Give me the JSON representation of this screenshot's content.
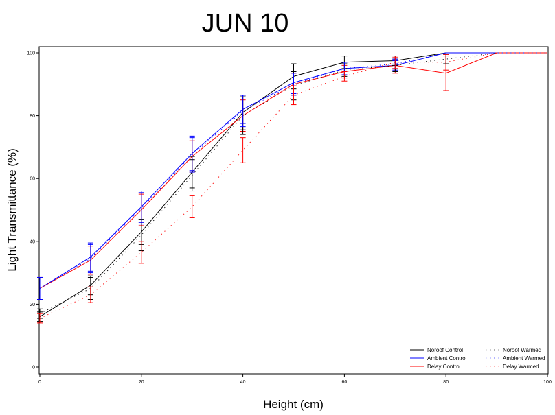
{
  "chart_data": {
    "type": "line",
    "title": "JUN 10",
    "xlabel": "Height (cm)",
    "ylabel": "Light Transmittance (%)",
    "xlim": [
      0,
      100
    ],
    "ylim": [
      0,
      100
    ],
    "xticks": [
      "0",
      "20",
      "40",
      "60",
      "80",
      "100"
    ],
    "yticks": [
      "0",
      "20",
      "40",
      "60",
      "80",
      "100"
    ],
    "grid": false,
    "legend_position": "bottom-right",
    "x": [
      0,
      10,
      20,
      30,
      40,
      50,
      60,
      70,
      80,
      90,
      100
    ],
    "series": [
      {
        "name": "Noroof Control",
        "color": "#000000",
        "style": "solid",
        "values": [
          16,
          26,
          43,
          62,
          81,
          92.5,
          97,
          97.5,
          100,
          100,
          100
        ],
        "errors": [
          1.5,
          3,
          4,
          5,
          5.5,
          4,
          2,
          1.5,
          0,
          0,
          0
        ]
      },
      {
        "name": "Ambient Control",
        "color": "#0000ff",
        "style": "solid",
        "values": [
          25,
          35,
          51,
          68,
          82,
          90.5,
          95,
          96,
          100,
          100,
          100
        ],
        "errors": [
          3.5,
          4.5,
          5,
          5.5,
          4.5,
          3.5,
          2,
          1.5,
          0,
          0,
          0
        ]
      },
      {
        "name": "Delay Control",
        "color": "#ff0000",
        "style": "solid",
        "values": [
          25,
          34,
          50,
          67,
          80,
          90,
          94,
          96,
          93.5,
          100,
          100
        ],
        "errors": [
          3.5,
          4.5,
          5,
          5,
          5,
          3.5,
          2,
          2.5,
          5.5,
          0,
          0
        ]
      },
      {
        "name": "Noroof Warmed",
        "color": "#000000",
        "style": "dotted",
        "values": [
          17,
          25,
          42,
          61,
          80,
          89.5,
          94.5,
          96,
          98,
          100,
          100
        ],
        "errors": [
          1.5,
          3.5,
          5,
          5,
          6,
          4.5,
          2,
          2,
          1.5,
          0,
          0
        ]
      },
      {
        "name": "Ambient Warmed",
        "color": "#0000ff",
        "style": "dotted",
        "values": [
          25,
          34.5,
          50.5,
          67.5,
          81.5,
          90,
          95,
          96.5,
          100,
          100,
          100
        ],
        "errors": [
          3.5,
          4.5,
          5,
          5.5,
          5,
          3.5,
          2,
          1.5,
          0,
          0,
          0
        ]
      },
      {
        "name": "Delay Warmed",
        "color": "#ff0000",
        "style": "dotted",
        "values": [
          15.5,
          23,
          36.5,
          51,
          69,
          86.5,
          92.5,
          97,
          97,
          100,
          100
        ],
        "errors": [
          1.5,
          2.5,
          3.5,
          3.5,
          4,
          3,
          1.5,
          2,
          2.5,
          0,
          0
        ]
      }
    ]
  }
}
